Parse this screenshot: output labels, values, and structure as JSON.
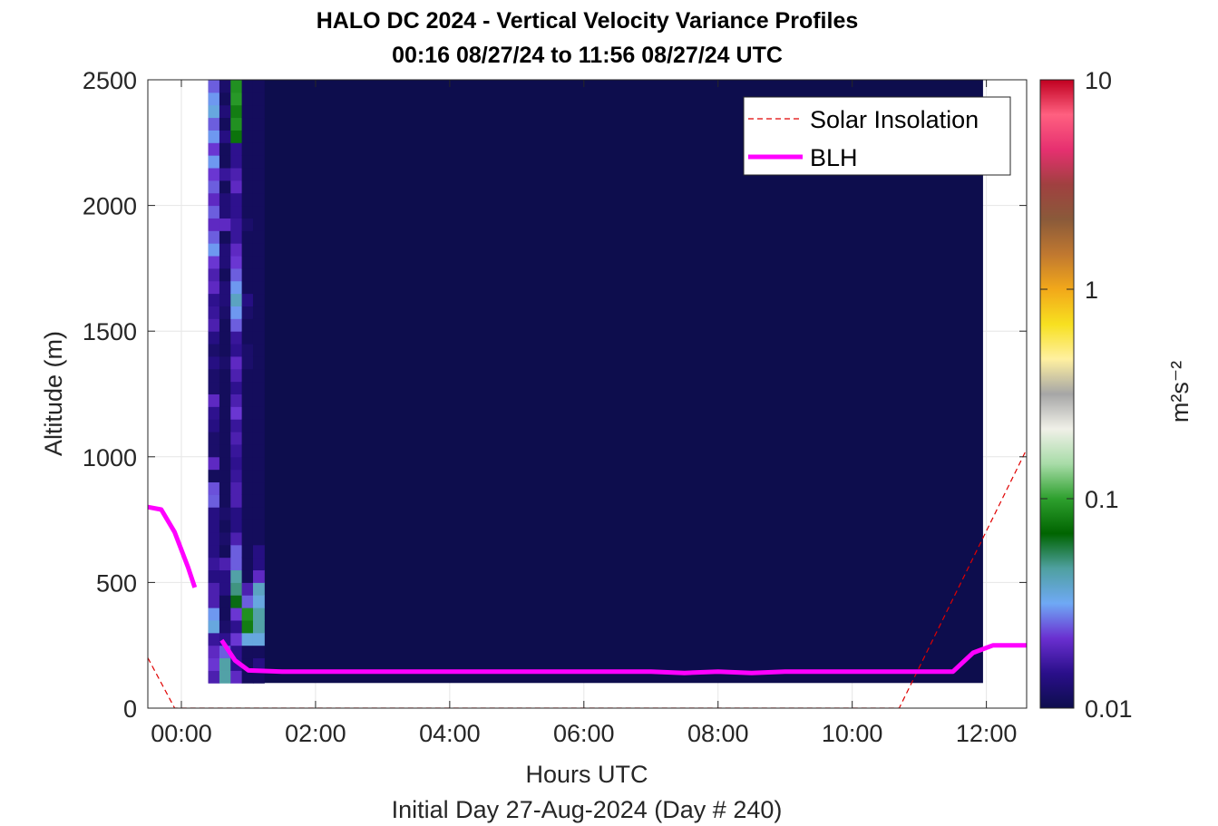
{
  "chart_data": {
    "type": "heatmap",
    "title": "HALO DC 2024 - Vertical Velocity Variance Profiles",
    "subtitle": "00:16 08/27/24 to 11:56 08/27/24  UTC",
    "xlabel": "Hours UTC",
    "xlabel2": "Initial Day 27-Aug-2024 (Day # 240)",
    "ylabel": "Altitude (m)",
    "x_ticks": [
      "00:00",
      "02:00",
      "04:00",
      "06:00",
      "08:00",
      "10:00",
      "12:00"
    ],
    "x_tick_values": [
      0,
      2,
      4,
      6,
      8,
      10,
      12
    ],
    "y_ticks": [
      "0",
      "500",
      "1000",
      "1500",
      "2000",
      "2500"
    ],
    "y_tick_values": [
      0,
      500,
      1000,
      1500,
      2000,
      2500
    ],
    "xlim": [
      -0.5,
      12.6
    ],
    "ylim": [
      0,
      2500
    ],
    "grid": true,
    "legend_position": "top-right",
    "colorbar": {
      "label": "m²s⁻²",
      "scale": "log",
      "range": [
        0.01,
        10
      ],
      "ticks": [
        "0.01",
        "0.1",
        "1",
        "10"
      ],
      "tick_values": [
        0.01,
        0.1,
        1,
        10
      ],
      "colors": [
        "#0d0d4d",
        "#2a0f8a",
        "#6a2fd0",
        "#6fa9f5",
        "#4fa0a0",
        "#006400",
        "#2ea02e",
        "#a8dca8",
        "#f0f0e8",
        "#a6a6a6",
        "#fff0a0",
        "#f7e020",
        "#f2a81a",
        "#c07830",
        "#8a5a3a",
        "#a04040",
        "#e63070",
        "#ff6080",
        "#c00020"
      ]
    },
    "heatmap": {
      "x_start": 0.4,
      "x_step": 0.167,
      "y_start": 100,
      "y_step": 50,
      "columns": [
        [
          0.018,
          0.022,
          0.02,
          0.016,
          0.035,
          0.03,
          0.018,
          0.018,
          0.014,
          0.016,
          0.014,
          0.014,
          0.014,
          0.014,
          0.025,
          0.024,
          0.011,
          0.02,
          0.012,
          0.012,
          0.014,
          0.015,
          0.02,
          0.012,
          0.012,
          0.014,
          0.012,
          0.014,
          0.018,
          0.016,
          0.015,
          0.02,
          0.018,
          0.022,
          0.03,
          0.025,
          0.02,
          0.025,
          0.02,
          0.025,
          0.022,
          0.03,
          0.022,
          0.03,
          0.025,
          0.035,
          0.03,
          0.025
        ],
        [
          0.045,
          0.045,
          0.025,
          0.015,
          0.012,
          0.011,
          0.011,
          0.014,
          0.014,
          0.018,
          0.011,
          0.012,
          0.011,
          0.012,
          0.011,
          0.011,
          0.011,
          0.011,
          0.011,
          0.011,
          0.011,
          0.011,
          0.011,
          0.011,
          0.011,
          0.012,
          0.011,
          0.011,
          0.011,
          0.012,
          0.013,
          0.013,
          0.011,
          0.013,
          0.013,
          0.011,
          0.02,
          0.013,
          0.013,
          0.011,
          0.016,
          0.011,
          0.011,
          0.014,
          0.011,
          0.013,
          0.011,
          0.012
        ],
        [
          0.02,
          0.015,
          0.015,
          0.022,
          0.015,
          0.022,
          0.065,
          0.05,
          0.045,
          0.025,
          0.025,
          0.018,
          0.014,
          0.014,
          0.018,
          0.018,
          0.016,
          0.015,
          0.016,
          0.018,
          0.016,
          0.022,
          0.018,
          0.015,
          0.018,
          0.02,
          0.015,
          0.016,
          0.025,
          0.03,
          0.04,
          0.03,
          0.025,
          0.022,
          0.02,
          0.016,
          0.016,
          0.015,
          0.015,
          0.02,
          0.018,
          0.015,
          0.015,
          0.075,
          0.09,
          0.08,
          0.095,
          0.09
        ],
        [
          0.011,
          0.011,
          0.011,
          0.035,
          0.08,
          0.09,
          0.025,
          0.018,
          0.011,
          0.011,
          0.011,
          0.011,
          0.011,
          0.011,
          0.011,
          0.011,
          0.011,
          0.011,
          0.011,
          0.011,
          0.011,
          0.011,
          0.011,
          0.011,
          0.011,
          0.012,
          0.012,
          0.011,
          0.011,
          0.012,
          0.014,
          0.011,
          0.011,
          0.011,
          0.011,
          0.011,
          0.012,
          0.011,
          0.011,
          0.011,
          0.011,
          0.011,
          0.011,
          0.011,
          0.011,
          0.011,
          0.011,
          0.011
        ],
        [
          0.011,
          0.014,
          0.011,
          0.035,
          0.045,
          0.045,
          0.035,
          0.04,
          0.02,
          0.014,
          0.014,
          0.011,
          0.011,
          0.011,
          0.011,
          0.011,
          0.011,
          0.011,
          0.011,
          0.011,
          0.011,
          0.011,
          0.011,
          0.011,
          0.011,
          0.011,
          0.011,
          0.011,
          0.011,
          0.011,
          0.011,
          0.011,
          0.011,
          0.011,
          0.011,
          0.011,
          0.011,
          0.011,
          0.011,
          0.011,
          0.011,
          0.011,
          0.011,
          0.011,
          0.011,
          0.011,
          0.011,
          0.011
        ]
      ]
    },
    "solar_insolation": {
      "x": [
        -0.5,
        -0.1,
        10.7,
        12.6
      ],
      "y": [
        200,
        0,
        0,
        1030
      ]
    },
    "blh": {
      "segments": [
        {
          "x": [
            -0.5,
            -0.3,
            -0.1,
            0.1,
            0.2
          ],
          "y": [
            800,
            790,
            700,
            560,
            480
          ]
        },
        {
          "x": [
            0.6,
            0.8,
            1.0,
            1.5,
            2.5,
            4.0,
            5.5,
            7.0,
            7.5,
            8.0,
            8.5,
            9.0,
            10.0,
            11.0,
            11.5,
            11.8,
            12.1,
            12.6
          ],
          "y": [
            270,
            190,
            150,
            145,
            145,
            145,
            145,
            145,
            140,
            145,
            140,
            145,
            145,
            145,
            145,
            220,
            250,
            250
          ]
        }
      ]
    }
  },
  "legend": {
    "items": [
      {
        "label": "Solar Insolation",
        "color": "#e00000",
        "style": "dashed"
      },
      {
        "label": "BLH",
        "color": "#ff00ff",
        "style": "solid"
      }
    ]
  },
  "colors": {
    "blh": "#ff00ff",
    "solar": "#e00000",
    "background": "#0d0d4d"
  }
}
